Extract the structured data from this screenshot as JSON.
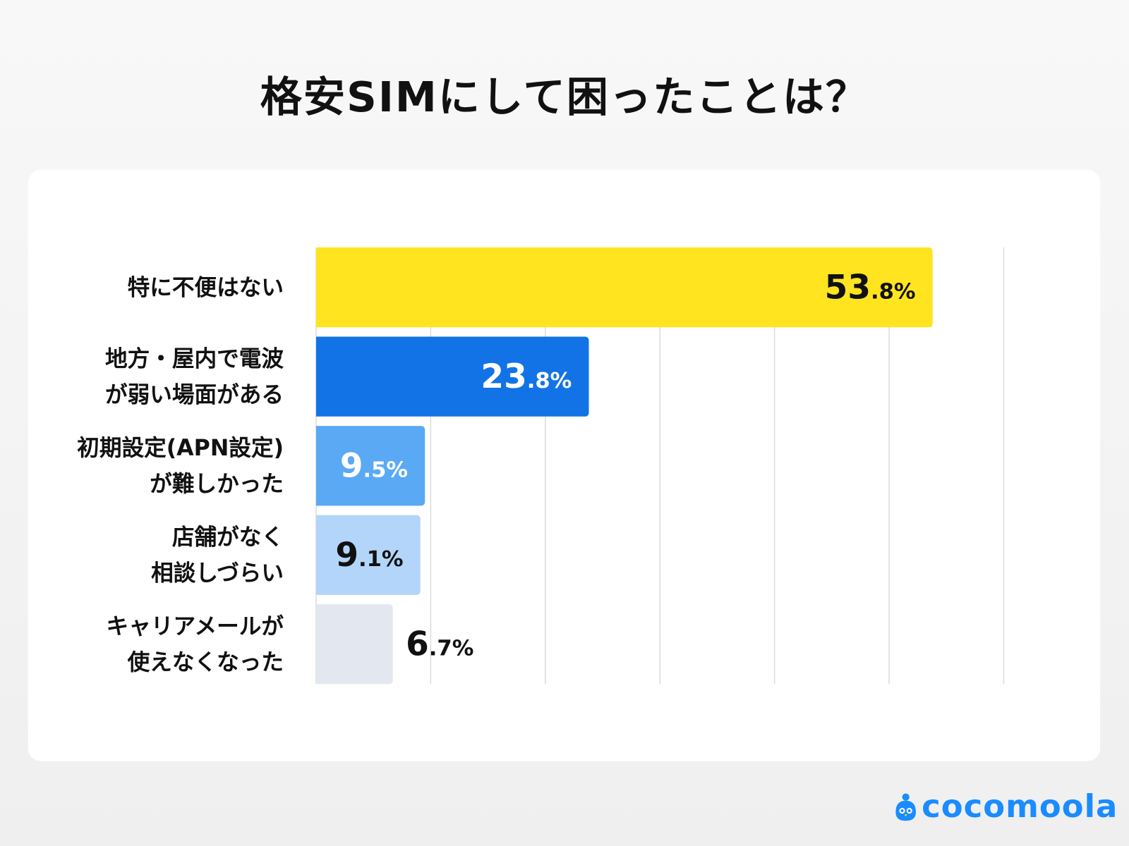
{
  "title": "格安SIMにして困ったことは？",
  "brand": "cocomoola",
  "chart_data": {
    "type": "bar",
    "orientation": "horizontal",
    "title": "格安SIMにして困ったことは？",
    "categories": [
      [
        "特に不便はない"
      ],
      [
        "地方・屋内で電波",
        "が弱い場面がある"
      ],
      [
        "初期設定(APN設定)",
        "が難しかった"
      ],
      [
        "店舗がなく",
        "相談しづらい"
      ],
      [
        "キャリアメールが",
        "使えなくなった"
      ]
    ],
    "values": [
      53.8,
      23.8,
      9.5,
      9.1,
      6.7
    ],
    "unit": "%",
    "xlim": [
      0,
      60
    ],
    "grid": true,
    "bar_colors": [
      "#ffe41f",
      "#1273e6",
      "#5aa9f5",
      "#b3d5fa",
      "#e3e8f0"
    ],
    "label_colors": [
      "#111111",
      "#ffffff",
      "#ffffff",
      "#111111",
      "#111111"
    ]
  }
}
